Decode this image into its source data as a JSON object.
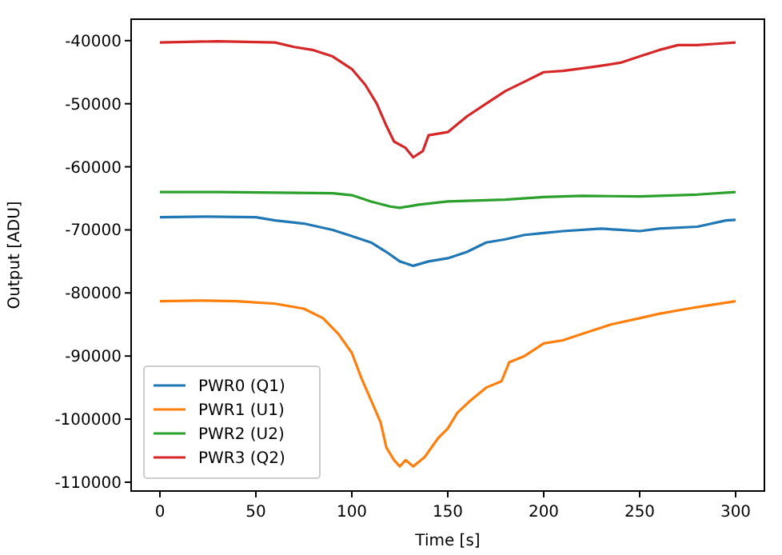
{
  "chart_data": {
    "type": "line",
    "xlabel": "Time [s]",
    "ylabel": "Output [ADU]",
    "xlim": [
      -15,
      315
    ],
    "ylim": [
      -111400,
      -36600
    ],
    "xticks": [
      0,
      50,
      100,
      150,
      200,
      250,
      300
    ],
    "yticks": [
      -110000,
      -100000,
      -90000,
      -80000,
      -70000,
      -60000,
      -50000,
      -40000
    ],
    "legend": "bottom left",
    "grid": false,
    "line_style": "solid",
    "series": [
      {
        "name": "PWR0 (Q1)",
        "color": "#1f77b4",
        "x": [
          0,
          25,
          50,
          60,
          75,
          90,
          100,
          110,
          118,
          125,
          132,
          140,
          150,
          160,
          170,
          180,
          190,
          200,
          210,
          230,
          240,
          250,
          260,
          280,
          295,
          300
        ],
        "values": [
          -68000,
          -67900,
          -68000,
          -68500,
          -69000,
          -70000,
          -71000,
          -72000,
          -73500,
          -75000,
          -75700,
          -75000,
          -74500,
          -73500,
          -72000,
          -71500,
          -70800,
          -70500,
          -70200,
          -69800,
          -70000,
          -70200,
          -69800,
          -69500,
          -68500,
          -68400
        ]
      },
      {
        "name": "PWR1 (U1)",
        "color": "#ff7f0e",
        "x": [
          0,
          20,
          40,
          60,
          75,
          85,
          93,
          100,
          105,
          110,
          115,
          118,
          122,
          125,
          128,
          132,
          138,
          145,
          150,
          155,
          162,
          170,
          178,
          182,
          190,
          195,
          200,
          210,
          220,
          235,
          250,
          260,
          275,
          285,
          300
        ],
        "values": [
          -81300,
          -81200,
          -81300,
          -81700,
          -82500,
          -84000,
          -86500,
          -89500,
          -93500,
          -97000,
          -100500,
          -104500,
          -106500,
          -107500,
          -106500,
          -107500,
          -106000,
          -103000,
          -101500,
          -99000,
          -97000,
          -95000,
          -94000,
          -91000,
          -90000,
          -89000,
          -88000,
          -87500,
          -86500,
          -85000,
          -84000,
          -83300,
          -82500,
          -82000,
          -81300
        ]
      },
      {
        "name": "PWR2 (U2)",
        "color": "#2ca02c",
        "x": [
          0,
          30,
          60,
          90,
          100,
          110,
          120,
          125,
          135,
          150,
          170,
          180,
          200,
          220,
          250,
          280,
          300
        ],
        "values": [
          -64000,
          -64000,
          -64100,
          -64200,
          -64500,
          -65500,
          -66300,
          -66500,
          -66000,
          -65500,
          -65300,
          -65200,
          -64800,
          -64600,
          -64700,
          -64400,
          -64000
        ]
      },
      {
        "name": "PWR3 (Q2)",
        "color": "#d62728",
        "x": [
          0,
          30,
          60,
          70,
          80,
          90,
          100,
          107,
          113,
          118,
          122,
          128,
          132,
          137,
          140,
          150,
          160,
          170,
          180,
          190,
          200,
          210,
          225,
          240,
          250,
          260,
          270,
          280,
          290,
          300
        ],
        "values": [
          -40300,
          -40100,
          -40300,
          -41000,
          -41500,
          -42500,
          -44500,
          -47000,
          -50000,
          -53500,
          -56000,
          -57000,
          -58500,
          -57500,
          -55000,
          -54500,
          -52000,
          -50000,
          -48000,
          -46500,
          -45000,
          -44800,
          -44200,
          -43500,
          -42500,
          -41500,
          -40700,
          -40700,
          -40500,
          -40300
        ]
      }
    ]
  }
}
